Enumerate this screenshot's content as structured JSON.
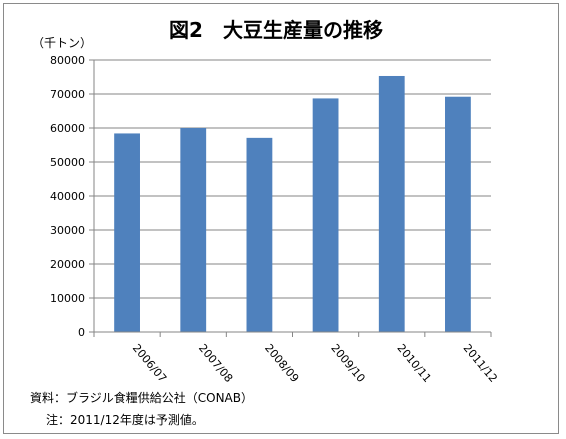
{
  "chart_data": {
    "type": "bar",
    "title": "図2　大豆生産量の推移",
    "ylabel": "（千トン）",
    "xlabel": "",
    "categories": [
      "2006/07",
      "2007/08",
      "2008/09",
      "2009/10",
      "2010/11",
      "2011/12"
    ],
    "values": [
      58400,
      60000,
      57100,
      68700,
      75300,
      69200
    ],
    "ylim": [
      0,
      80000
    ],
    "yticks": [
      "0",
      "10000",
      "20000",
      "30000",
      "40000",
      "50000",
      "60000",
      "70000",
      "80000"
    ],
    "grid": true,
    "legend": "none",
    "bar_color": "#4f81bd"
  },
  "notes": {
    "source": "資料：ブラジル食糧供給公社（CONAB）",
    "footnote": "注：2011/12年度は予測値。"
  }
}
